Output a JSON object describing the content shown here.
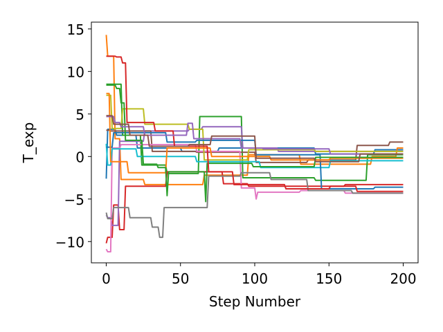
{
  "chart_data": {
    "type": "line",
    "xlabel": "Step Number",
    "ylabel": "T_exp",
    "xlim": [
      -10,
      210
    ],
    "ylim": [
      -12.5,
      15.8
    ],
    "grid": false,
    "legend": "none",
    "xticks": [
      0,
      50,
      100,
      150,
      200
    ],
    "yticks": [
      -10,
      -5,
      0,
      5,
      10,
      15
    ],
    "x_tick_labels": [
      "0",
      "50",
      "100",
      "150",
      "200"
    ],
    "y_tick_labels": [
      "−10",
      "−5",
      "0",
      "5",
      "10",
      "15"
    ],
    "series": [
      {
        "color": "#1f77b4",
        "points": [
          [
            0,
            -2.6
          ],
          [
            1,
            3.2
          ],
          [
            6,
            3.2
          ],
          [
            7,
            2.5
          ],
          [
            20,
            2.5
          ],
          [
            21,
            1.0
          ],
          [
            50,
            1.0
          ],
          [
            51,
            0.6
          ],
          [
            75,
            0.6
          ],
          [
            76,
            1.0
          ],
          [
            140,
            1.0
          ],
          [
            141,
            0.3
          ],
          [
            180,
            0.3
          ],
          [
            181,
            0.8
          ],
          [
            200,
            0.8
          ]
        ]
      },
      {
        "color": "#ff7f0e",
        "points": [
          [
            0,
            14.3
          ],
          [
            1,
            11.8
          ],
          [
            5,
            11.8
          ],
          [
            6,
            2.1
          ],
          [
            9,
            2.1
          ],
          [
            10,
            -2.7
          ],
          [
            25,
            -2.7
          ],
          [
            26,
            -3.3
          ],
          [
            65,
            -3.3
          ],
          [
            66,
            -2.2
          ],
          [
            95,
            -2.2
          ],
          [
            96,
            0.2
          ],
          [
            130,
            0.2
          ],
          [
            131,
            -0.9
          ],
          [
            178,
            -0.9
          ],
          [
            179,
            0.0
          ],
          [
            195,
            0.0
          ],
          [
            196,
            1.0
          ],
          [
            200,
            1.0
          ]
        ]
      },
      {
        "color": "#2ca02c",
        "points": [
          [
            0,
            8.5
          ],
          [
            1,
            8.5
          ],
          [
            10,
            8.5
          ],
          [
            11,
            2.5
          ],
          [
            23,
            2.5
          ],
          [
            24,
            -1.0
          ],
          [
            40,
            -1.0
          ],
          [
            41,
            -2.0
          ],
          [
            62,
            -2.0
          ],
          [
            63,
            4.7
          ],
          [
            91,
            4.7
          ],
          [
            92,
            -2.5
          ],
          [
            140,
            -2.5
          ],
          [
            141,
            -2.8
          ],
          [
            175,
            -2.8
          ],
          [
            176,
            0.2
          ],
          [
            200,
            0.2
          ]
        ]
      },
      {
        "color": "#d62728",
        "points": [
          [
            0,
            -10.2
          ],
          [
            1,
            -9.5
          ],
          [
            4,
            -9.5
          ],
          [
            5,
            -5.7
          ],
          [
            8,
            -5.7
          ],
          [
            9,
            -8.6
          ],
          [
            12,
            -8.6
          ],
          [
            13,
            -3.5
          ],
          [
            40,
            -3.5
          ],
          [
            41,
            -1.8
          ],
          [
            78,
            -1.8
          ],
          [
            79,
            -3.2
          ],
          [
            95,
            -3.2
          ],
          [
            96,
            -3.5
          ],
          [
            160,
            -3.5
          ],
          [
            161,
            -3.3
          ],
          [
            200,
            -3.3
          ]
        ]
      },
      {
        "color": "#9467bd",
        "points": [
          [
            0,
            -6.9
          ],
          [
            1,
            -7.2
          ],
          [
            3,
            -7.2
          ],
          [
            4,
            -8.1
          ],
          [
            8,
            -8.1
          ],
          [
            9,
            1.8
          ],
          [
            25,
            1.8
          ],
          [
            26,
            3.0
          ],
          [
            55,
            3.0
          ],
          [
            56,
            3.2
          ],
          [
            64,
            3.2
          ],
          [
            65,
            3.5
          ],
          [
            91,
            3.5
          ],
          [
            92,
            1.0
          ],
          [
            115,
            1.0
          ],
          [
            116,
            0.6
          ],
          [
            200,
            0.6
          ]
        ]
      },
      {
        "color": "#8c564b",
        "points": [
          [
            0,
            3.1
          ],
          [
            2,
            3.1
          ],
          [
            3,
            3.0
          ],
          [
            30,
            3.0
          ],
          [
            31,
            0.6
          ],
          [
            60,
            0.6
          ],
          [
            61,
            0.5
          ],
          [
            100,
            0.5
          ],
          [
            101,
            -0.7
          ],
          [
            135,
            -0.7
          ],
          [
            136,
            -0.4
          ],
          [
            168,
            -0.4
          ],
          [
            169,
            1.3
          ],
          [
            190,
            1.3
          ],
          [
            191,
            1.7
          ],
          [
            200,
            1.7
          ]
        ]
      },
      {
        "color": "#e377c2",
        "points": [
          [
            0,
            -10.9
          ],
          [
            1,
            -11.2
          ],
          [
            3,
            -11.2
          ],
          [
            4,
            1.0
          ],
          [
            9,
            1.0
          ],
          [
            10,
            1.4
          ],
          [
            60,
            1.4
          ],
          [
            61,
            0.6
          ],
          [
            90,
            0.6
          ],
          [
            91,
            -3.7
          ],
          [
            100,
            -3.7
          ],
          [
            101,
            -5.0
          ],
          [
            102,
            -4.2
          ],
          [
            130,
            -4.2
          ],
          [
            131,
            -4.0
          ],
          [
            160,
            -4.0
          ],
          [
            161,
            -4.3
          ],
          [
            200,
            -4.3
          ]
        ]
      },
      {
        "color": "#7f7f7f",
        "points": [
          [
            0,
            -6.6
          ],
          [
            1,
            -7.3
          ],
          [
            4,
            -7.3
          ],
          [
            5,
            -6.0
          ],
          [
            15,
            -6.0
          ],
          [
            16,
            -7.2
          ],
          [
            30,
            -7.2
          ],
          [
            31,
            -8.3
          ],
          [
            35,
            -8.3
          ],
          [
            36,
            -9.5
          ],
          [
            38,
            -9.5
          ],
          [
            39,
            -6.0
          ],
          [
            68,
            -6.0
          ],
          [
            69,
            -2.3
          ],
          [
            90,
            -2.3
          ],
          [
            91,
            -1.9
          ],
          [
            110,
            -1.9
          ],
          [
            111,
            -2.7
          ],
          [
            135,
            -2.7
          ],
          [
            136,
            -4.0
          ],
          [
            165,
            -4.0
          ],
          [
            166,
            -4.3
          ],
          [
            200,
            -4.3
          ]
        ]
      },
      {
        "color": "#bcbd22",
        "points": [
          [
            0,
            7.2
          ],
          [
            3,
            7.2
          ],
          [
            4,
            3.3
          ],
          [
            10,
            3.3
          ],
          [
            11,
            5.6
          ],
          [
            25,
            5.6
          ],
          [
            26,
            3.8
          ],
          [
            55,
            3.8
          ],
          [
            56,
            3.2
          ],
          [
            65,
            3.2
          ],
          [
            66,
            -0.4
          ],
          [
            95,
            -0.4
          ],
          [
            96,
            0.8
          ],
          [
            140,
            0.8
          ],
          [
            141,
            0.6
          ],
          [
            200,
            0.6
          ]
        ]
      },
      {
        "color": "#17becf",
        "points": [
          [
            0,
            1.5
          ],
          [
            1,
            -1.0
          ],
          [
            3,
            -1.0
          ],
          [
            4,
            0.9
          ],
          [
            20,
            0.9
          ],
          [
            21,
            0.0
          ],
          [
            60,
            0.0
          ],
          [
            61,
            -0.6
          ],
          [
            103,
            -0.6
          ],
          [
            104,
            -1.3
          ],
          [
            150,
            -1.3
          ],
          [
            151,
            -0.5
          ],
          [
            200,
            -0.5
          ]
        ]
      },
      {
        "color": "#1f77b4",
        "points": [
          [
            0,
            1.1
          ],
          [
            4,
            1.1
          ],
          [
            5,
            2.8
          ],
          [
            40,
            2.8
          ],
          [
            41,
            1.7
          ],
          [
            60,
            1.7
          ],
          [
            61,
            1.9
          ],
          [
            100,
            1.9
          ],
          [
            101,
            0.2
          ],
          [
            144,
            0.2
          ],
          [
            145,
            -3.8
          ],
          [
            180,
            -3.8
          ],
          [
            181,
            -3.6
          ],
          [
            200,
            -3.6
          ]
        ]
      },
      {
        "color": "#ff7f0e",
        "points": [
          [
            0,
            7.4
          ],
          [
            2,
            7.4
          ],
          [
            3,
            -0.6
          ],
          [
            14,
            -0.6
          ],
          [
            15,
            -1.9
          ],
          [
            40,
            -1.9
          ],
          [
            41,
            1.0
          ],
          [
            70,
            1.0
          ],
          [
            71,
            0.0
          ],
          [
            110,
            0.0
          ],
          [
            111,
            -0.4
          ],
          [
            150,
            -0.4
          ],
          [
            151,
            -0.2
          ],
          [
            200,
            -0.2
          ]
        ]
      },
      {
        "color": "#2ca02c",
        "points": [
          [
            0,
            8.4
          ],
          [
            6,
            8.4
          ],
          [
            7,
            8.0
          ],
          [
            9,
            8.0
          ],
          [
            10,
            6.3
          ],
          [
            12,
            6.3
          ],
          [
            13,
            1.9
          ],
          [
            24,
            1.9
          ],
          [
            25,
            -0.9
          ],
          [
            34,
            -0.9
          ],
          [
            35,
            -1.3
          ],
          [
            40,
            -1.3
          ],
          [
            41,
            -4.6
          ],
          [
            42,
            -1.8
          ],
          [
            66,
            -1.8
          ],
          [
            67,
            -5.3
          ],
          [
            68,
            -0.8
          ],
          [
            98,
            -0.8
          ],
          [
            99,
            -1.2
          ],
          [
            140,
            -1.2
          ],
          [
            141,
            -0.1
          ],
          [
            200,
            -0.1
          ]
        ]
      },
      {
        "color": "#d62728",
        "points": [
          [
            0,
            11.8
          ],
          [
            6,
            11.8
          ],
          [
            7,
            11.7
          ],
          [
            10,
            11.7
          ],
          [
            11,
            11.0
          ],
          [
            13,
            11.0
          ],
          [
            14,
            4.0
          ],
          [
            32,
            4.0
          ],
          [
            33,
            3.0
          ],
          [
            45,
            3.0
          ],
          [
            46,
            1.2
          ],
          [
            68,
            1.2
          ],
          [
            69,
            -1.8
          ],
          [
            85,
            -1.8
          ],
          [
            86,
            -3.3
          ],
          [
            120,
            -3.3
          ],
          [
            121,
            -3.8
          ],
          [
            150,
            -3.8
          ],
          [
            151,
            -3.5
          ],
          [
            168,
            -3.5
          ],
          [
            169,
            -4.1
          ],
          [
            200,
            -4.1
          ]
        ]
      },
      {
        "color": "#9467bd",
        "points": [
          [
            0,
            4.7
          ],
          [
            5,
            4.7
          ],
          [
            6,
            4.0
          ],
          [
            9,
            4.0
          ],
          [
            10,
            3.5
          ],
          [
            25,
            3.5
          ],
          [
            26,
            2.5
          ],
          [
            54,
            2.5
          ],
          [
            55,
            3.9
          ],
          [
            58,
            3.9
          ],
          [
            59,
            2.1
          ],
          [
            90,
            2.1
          ],
          [
            91,
            1.0
          ],
          [
            105,
            1.0
          ],
          [
            106,
            0.9
          ],
          [
            150,
            0.9
          ],
          [
            151,
            0.3
          ],
          [
            200,
            0.3
          ]
        ]
      },
      {
        "color": "#8c564b",
        "points": [
          [
            0,
            4.8
          ],
          [
            4,
            4.8
          ],
          [
            5,
            3.8
          ],
          [
            15,
            3.8
          ],
          [
            16,
            2.5
          ],
          [
            28,
            2.5
          ],
          [
            29,
            1.2
          ],
          [
            55,
            1.2
          ],
          [
            56,
            1.4
          ],
          [
            70,
            1.4
          ],
          [
            71,
            2.4
          ],
          [
            100,
            2.4
          ],
          [
            101,
            -0.2
          ],
          [
            140,
            -0.2
          ],
          [
            141,
            -0.6
          ],
          [
            170,
            -0.6
          ],
          [
            171,
            0.3
          ],
          [
            200,
            0.3
          ]
        ]
      }
    ]
  }
}
